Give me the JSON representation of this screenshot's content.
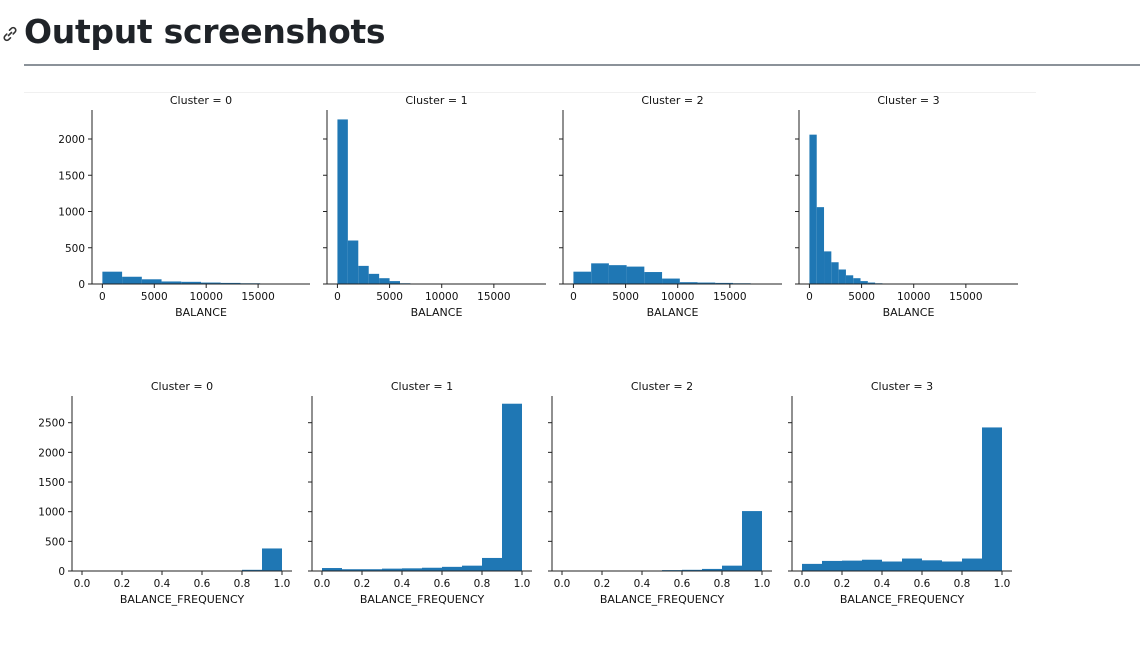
{
  "page": {
    "heading": "Output screenshots",
    "heading_icon": "link-icon"
  },
  "colors": {
    "bar": "#1f77b4",
    "axis": "#222222"
  },
  "chart_data": [
    {
      "type": "bar",
      "title": "Cluster = 0",
      "xlabel": "BALANCE",
      "xlim": [
        -1000,
        20000
      ],
      "xticks": [
        0,
        5000,
        10000,
        15000
      ],
      "xticklabels": [
        "0",
        "5000",
        "10000",
        "15000"
      ],
      "ylim": [
        0,
        2400
      ],
      "yticks": [
        0,
        500,
        1000,
        1500,
        2000
      ],
      "yticklabels": [
        "0",
        "500",
        "1000",
        "1500",
        "2000"
      ],
      "show_yticklabels": true,
      "bin_edges": [
        0,
        1900,
        3800,
        5700,
        7600,
        9500,
        11400,
        13300,
        15200,
        17100,
        19000
      ],
      "values": [
        170,
        100,
        65,
        35,
        30,
        20,
        15,
        10,
        3,
        2
      ]
    },
    {
      "type": "bar",
      "title": "Cluster = 1",
      "xlabel": "BALANCE",
      "xlim": [
        -1000,
        20000
      ],
      "xticks": [
        0,
        5000,
        10000,
        15000
      ],
      "xticklabels": [
        "0",
        "5000",
        "10000",
        "15000"
      ],
      "ylim": [
        0,
        2400
      ],
      "yticks": [
        0,
        500,
        1000,
        1500,
        2000
      ],
      "yticklabels": [
        "0",
        "500",
        "1000",
        "1500",
        "2000"
      ],
      "show_yticklabels": false,
      "bin_edges": [
        0,
        1000,
        2000,
        3000,
        4000,
        5000,
        6000,
        7000
      ],
      "values": [
        2270,
        600,
        250,
        140,
        80,
        40,
        10
      ]
    },
    {
      "type": "bar",
      "title": "Cluster = 2",
      "xlabel": "BALANCE",
      "xlim": [
        -1000,
        20000
      ],
      "xticks": [
        0,
        5000,
        10000,
        15000
      ],
      "xticklabels": [
        "0",
        "5000",
        "10000",
        "15000"
      ],
      "ylim": [
        0,
        2400
      ],
      "yticks": [
        0,
        500,
        1000,
        1500,
        2000
      ],
      "yticklabels": [
        "0",
        "500",
        "1000",
        "1500",
        "2000"
      ],
      "show_yticklabels": false,
      "bin_edges": [
        0,
        1700,
        3400,
        5100,
        6800,
        8500,
        10200,
        11900,
        13600,
        15300,
        17000
      ],
      "values": [
        170,
        285,
        260,
        240,
        165,
        75,
        25,
        20,
        15,
        10
      ]
    },
    {
      "type": "bar",
      "title": "Cluster = 3",
      "xlabel": "BALANCE",
      "xlim": [
        -1000,
        20000
      ],
      "xticks": [
        0,
        5000,
        10000,
        15000
      ],
      "xticklabels": [
        "0",
        "5000",
        "10000",
        "15000"
      ],
      "ylim": [
        0,
        2400
      ],
      "yticks": [
        0,
        500,
        1000,
        1500,
        2000
      ],
      "yticklabels": [
        "0",
        "500",
        "1000",
        "1500",
        "2000"
      ],
      "show_yticklabels": false,
      "bin_edges": [
        0,
        700,
        1400,
        2100,
        2800,
        3500,
        4200,
        4900,
        5600,
        6300,
        7000
      ],
      "values": [
        2060,
        1060,
        450,
        300,
        200,
        120,
        80,
        40,
        20,
        10
      ]
    },
    {
      "type": "bar",
      "title": "Cluster = 0",
      "xlabel": "BALANCE_FREQUENCY",
      "xlim": [
        -0.05,
        1.05
      ],
      "xticks": [
        0,
        0.2,
        0.4,
        0.6,
        0.8,
        1.0
      ],
      "xticklabels": [
        "0.0",
        "0.2",
        "0.4",
        "0.6",
        "0.8",
        "1.0"
      ],
      "ylim": [
        0,
        2950
      ],
      "yticks": [
        0,
        500,
        1000,
        1500,
        2000,
        2500
      ],
      "yticklabels": [
        "0",
        "500",
        "1000",
        "1500",
        "2000",
        "2500"
      ],
      "show_yticklabels": true,
      "bin_edges": [
        0.8,
        0.9,
        1.0
      ],
      "values": [
        20,
        380
      ]
    },
    {
      "type": "bar",
      "title": "Cluster = 1",
      "xlabel": "BALANCE_FREQUENCY",
      "xlim": [
        -0.05,
        1.05
      ],
      "xticks": [
        0,
        0.2,
        0.4,
        0.6,
        0.8,
        1.0
      ],
      "xticklabels": [
        "0.0",
        "0.2",
        "0.4",
        "0.6",
        "0.8",
        "1.0"
      ],
      "ylim": [
        0,
        2950
      ],
      "yticks": [
        0,
        500,
        1000,
        1500,
        2000,
        2500
      ],
      "yticklabels": [
        "0",
        "500",
        "1000",
        "1500",
        "2000",
        "2500"
      ],
      "show_yticklabels": false,
      "bin_edges": [
        0,
        0.1,
        0.2,
        0.3,
        0.4,
        0.5,
        0.6,
        0.7,
        0.8,
        0.9,
        1.0
      ],
      "values": [
        50,
        30,
        30,
        40,
        45,
        55,
        70,
        90,
        220,
        2820
      ]
    },
    {
      "type": "bar",
      "title": "Cluster = 2",
      "xlabel": "BALANCE_FREQUENCY",
      "xlim": [
        -0.05,
        1.05
      ],
      "xticks": [
        0,
        0.2,
        0.4,
        0.6,
        0.8,
        1.0
      ],
      "xticklabels": [
        "0.0",
        "0.2",
        "0.4",
        "0.6",
        "0.8",
        "1.0"
      ],
      "ylim": [
        0,
        2950
      ],
      "yticks": [
        0,
        500,
        1000,
        1500,
        2000,
        2500
      ],
      "yticklabels": [
        "0",
        "500",
        "1000",
        "1500",
        "2000",
        "2500"
      ],
      "show_yticklabels": false,
      "bin_edges": [
        0.5,
        0.6,
        0.7,
        0.8,
        0.9,
        1.0
      ],
      "values": [
        15,
        20,
        35,
        90,
        1010
      ]
    },
    {
      "type": "bar",
      "title": "Cluster = 3",
      "xlabel": "BALANCE_FREQUENCY",
      "xlim": [
        -0.05,
        1.05
      ],
      "xticks": [
        0,
        0.2,
        0.4,
        0.6,
        0.8,
        1.0
      ],
      "xticklabels": [
        "0.0",
        "0.2",
        "0.4",
        "0.6",
        "0.8",
        "1.0"
      ],
      "ylim": [
        0,
        2950
      ],
      "yticks": [
        0,
        500,
        1000,
        1500,
        2000,
        2500
      ],
      "yticklabels": [
        "0",
        "500",
        "1000",
        "1500",
        "2000",
        "2500"
      ],
      "show_yticklabels": false,
      "bin_edges": [
        0,
        0.1,
        0.2,
        0.3,
        0.4,
        0.5,
        0.6,
        0.7,
        0.8,
        0.9,
        1.0
      ],
      "values": [
        120,
        170,
        175,
        190,
        160,
        210,
        180,
        160,
        210,
        2420
      ]
    }
  ]
}
